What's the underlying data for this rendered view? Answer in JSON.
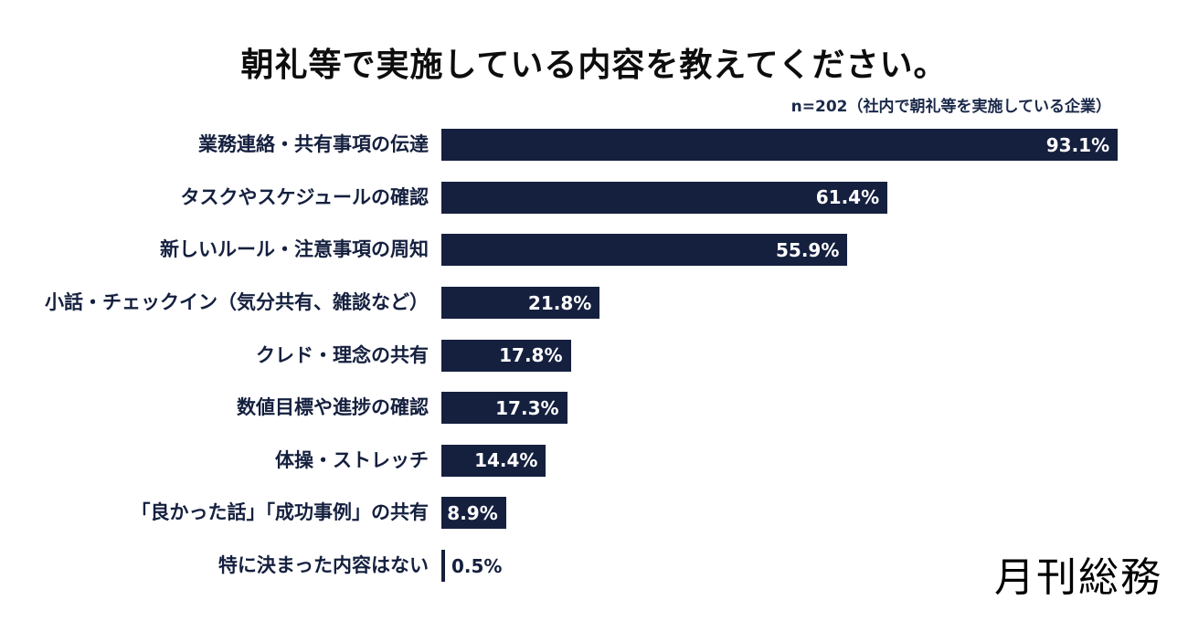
{
  "page": {
    "title": "朝礼等で実施している内容を教えてください。",
    "subtitle": "n=202（社内で朝礼等を実施している企業）",
    "logo": "月刊総務"
  },
  "colors": {
    "bar_navy": "#15203F",
    "title_text": "#0D0D0D",
    "value_inside_text": "#FFFFFF",
    "background": "#FFFFFF"
  },
  "chart_data": {
    "type": "bar",
    "orientation": "horizontal",
    "title": "朝礼等で実施している内容を教えてください。",
    "subtitle": "n=202（社内で朝礼等を実施している企業）",
    "categories": [
      "業務連絡・共有事項の伝達",
      "タスクやスケジュールの確認",
      "新しいルール・注意事項の周知",
      "小話・チェックイン（気分共有、雑談など）",
      "クレド・理念の共有",
      "数値目標や進捗の確認",
      "体操・ストレッチ",
      "「良かった話」「成功事例」の共有",
      "特に決まった内容はない"
    ],
    "values": [
      93.1,
      61.4,
      55.9,
      21.8,
      17.8,
      17.3,
      14.4,
      8.9,
      0.5
    ],
    "unit": "%",
    "xlim": [
      0,
      100
    ],
    "grid": false,
    "legend": false,
    "value_labels": "inside bar end, white; outside for smallest bar"
  }
}
